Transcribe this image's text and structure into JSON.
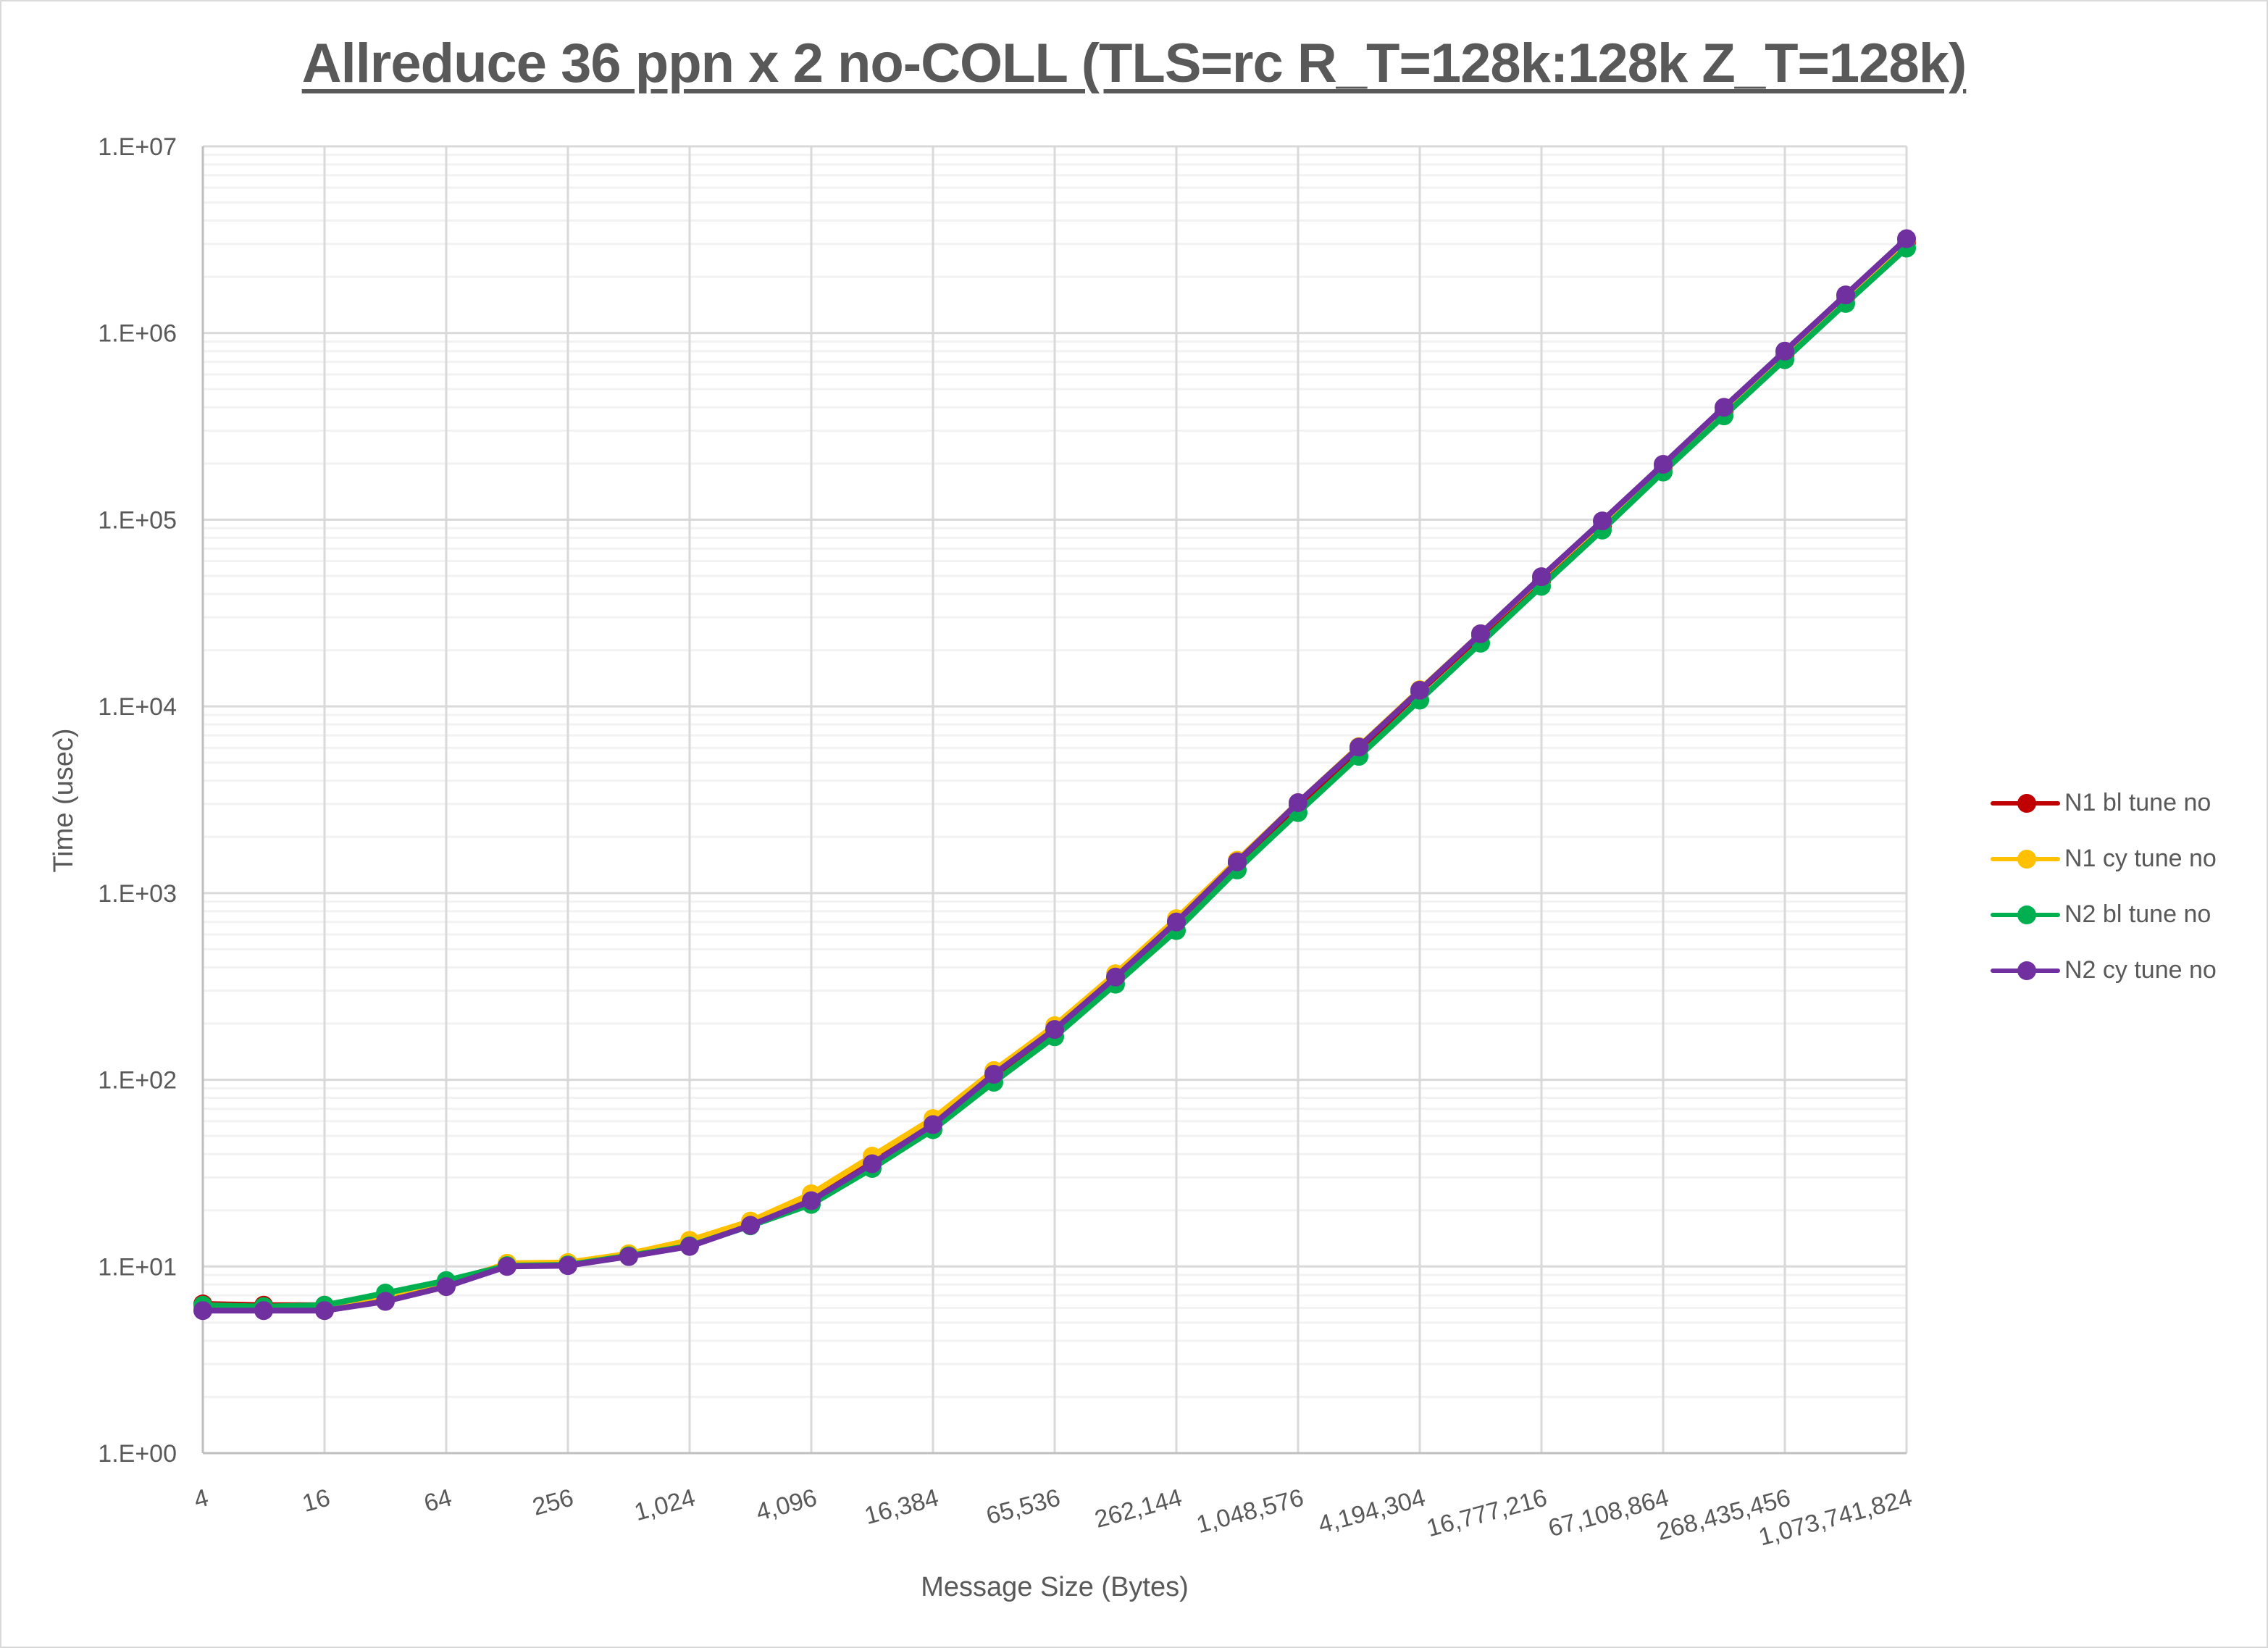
{
  "chart_data": {
    "type": "line",
    "title": "Allreduce 36 ppn x 2 no-COLL (TLS=rc R_T=128k:128k Z_T=128k)",
    "xlabel": "Message Size (Bytes)",
    "ylabel": "Time (usec)",
    "yscale": "log",
    "ylim": [
      1,
      10000000
    ],
    "y_ticks": [
      "1.E+00",
      "1.E+01",
      "1.E+02",
      "1.E+03",
      "1.E+04",
      "1.E+05",
      "1.E+06",
      "1.E+07"
    ],
    "x_tick_labels": [
      "4",
      "16",
      "64",
      "256",
      "1,024",
      "4,096",
      "16,384",
      "65,536",
      "262,144",
      "1,048,576",
      "4,194,304",
      "16,777,216",
      "67,108,864",
      "268,435,456",
      "1,073,741,824"
    ],
    "x": [
      4,
      8,
      16,
      32,
      64,
      128,
      256,
      512,
      1024,
      2048,
      4096,
      8192,
      16384,
      32768,
      65536,
      131072,
      262144,
      524288,
      1048576,
      2097152,
      4194304,
      8388608,
      16777216,
      33554432,
      67108864,
      134217728,
      268435456,
      536870912,
      1073741824
    ],
    "grid": true,
    "legend_position": "right",
    "series": [
      {
        "name": "N1 bl tune no",
        "color": "#c00000",
        "values": [
          6.3,
          6.2,
          6.2,
          7.0,
          8.3,
          10.2,
          10.3,
          11.5,
          13.2,
          17.0,
          23.0,
          36.0,
          58.0,
          105,
          185,
          350,
          700,
          1450,
          2950,
          5900,
          12000,
          24000,
          47000,
          92000,
          190000,
          380000,
          760000,
          1550000,
          3050000
        ]
      },
      {
        "name": "N1 cy tune no",
        "color": "#ffc000",
        "values": [
          6.0,
          6.0,
          6.0,
          6.8,
          8.0,
          10.4,
          10.5,
          11.7,
          13.8,
          17.5,
          24.5,
          39.0,
          62.0,
          112,
          195,
          370,
          730,
          1500,
          3050,
          6100,
          12300,
          24500,
          49000,
          97000,
          195000,
          395000,
          790000,
          1580000,
          3150000
        ]
      },
      {
        "name": "N2 bl tune no",
        "color": "#00b050",
        "values": [
          6.2,
          6.1,
          6.2,
          7.2,
          8.4,
          10.1,
          10.2,
          11.4,
          12.9,
          16.5,
          21.5,
          33.5,
          54.0,
          97,
          170,
          325,
          630,
          1330,
          2700,
          5400,
          10800,
          21800,
          44000,
          88000,
          180000,
          360000,
          720000,
          1440000,
          2850000
        ]
      },
      {
        "name": "N2 cy tune no",
        "color": "#7030a0",
        "values": [
          5.8,
          5.8,
          5.8,
          6.5,
          7.8,
          10.0,
          10.1,
          11.3,
          12.8,
          16.6,
          22.5,
          35.5,
          57.5,
          107,
          186,
          355,
          700,
          1470,
          3050,
          6050,
          12200,
          24500,
          49500,
          98500,
          198000,
          400000,
          800000,
          1600000,
          3200000
        ]
      }
    ]
  }
}
